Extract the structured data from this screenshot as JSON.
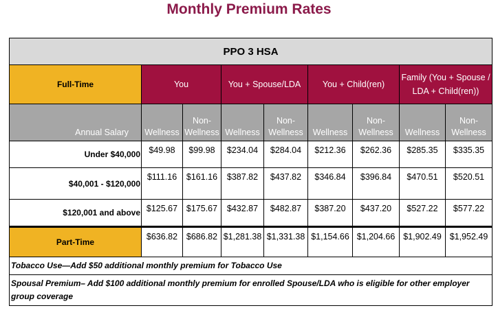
{
  "title": "Monthly Premium Rates",
  "plan": "PPO 3 HSA",
  "colors": {
    "title": "#8b1a4a",
    "maroon": "#a0113f",
    "gold": "#f0b323",
    "grey": "#a6a6a6",
    "plan_bg": "#d9d9d9"
  },
  "header": {
    "full_time": "Full-Time",
    "tiers": [
      "You",
      "You + Spouse/LDA",
      "You + Child(ren)",
      "Family (You + Spouse / LDA + Child(ren))"
    ]
  },
  "subheader": {
    "salary_label": "Annual Salary",
    "wellness": "Wellness",
    "non_wellness": "Non-Wellness"
  },
  "rows": [
    {
      "label": "Under $40,000",
      "values": [
        "$49.98",
        "$99.98",
        "$234.04",
        "$284.04",
        "$212.36",
        "$262.36",
        "$285.35",
        "$335.35"
      ]
    },
    {
      "label": "$40,001 - $120,000",
      "values": [
        "$111.16",
        "$161.16",
        "$387.82",
        "$437.82",
        "$346.84",
        "$396.84",
        "$470.51",
        "$520.51"
      ]
    },
    {
      "label": "$120,001 and above",
      "values": [
        "$125.67",
        "$175.67",
        "$432.87",
        "$482.87",
        "$387.20",
        "$437.20",
        "$527.22",
        "$577.22"
      ]
    }
  ],
  "part_time": {
    "label": "Part-Time",
    "values": [
      "$636.82",
      "$686.82",
      "$1,281.38",
      "$1,331.38",
      "$1,154.66",
      "$1,204.66",
      "$1,902.49",
      "$1,952.49"
    ]
  },
  "notes": [
    "Tobacco Use—Add $50 additional monthly premium for Tobacco Use",
    "Spousal Premium– Add $100 additional monthly premium for enrolled Spouse/LDA who is eligible for other employer group coverage"
  ]
}
